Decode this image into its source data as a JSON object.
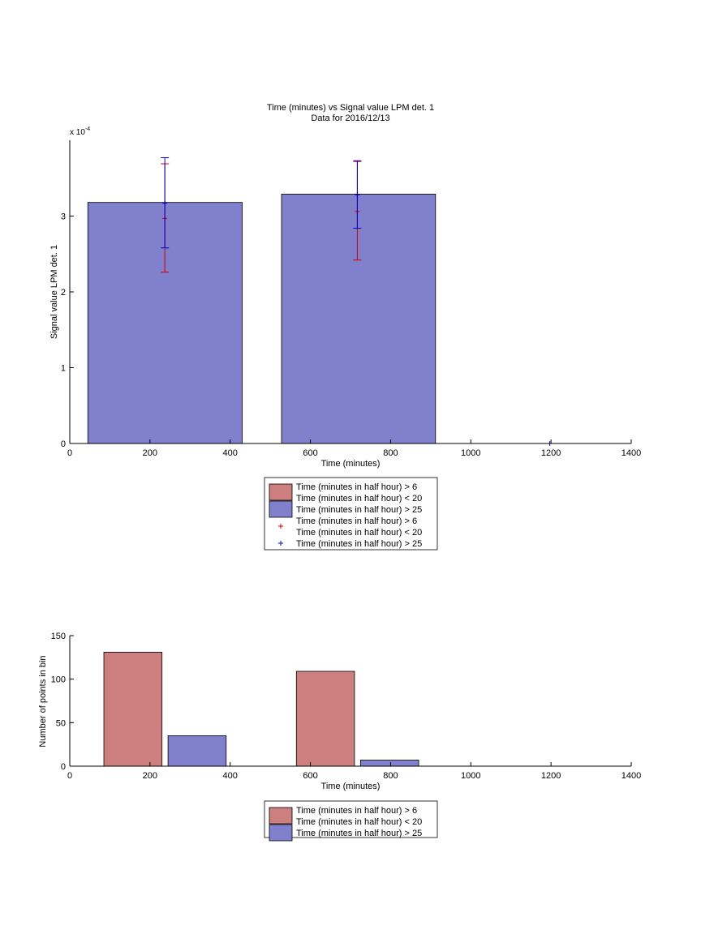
{
  "colors": {
    "red_bar": "#cd7f7f",
    "blue_bar": "#8080cd",
    "red_err": "#cc0000",
    "blue_err": "#0000cc"
  },
  "chart_data": [
    {
      "type": "bar",
      "title": "Time (minutes) vs Signal value LPM det. 1",
      "subtitle": "Data for 2016/12/13",
      "xlabel": "Time (minutes)",
      "ylabel": "Signal value LPM det. 1",
      "exponent_label": "x 10",
      "exponent_power": "-4",
      "xlim": [
        0,
        1400
      ],
      "ylim": [
        0,
        0.0004
      ],
      "xticks": [
        0,
        200,
        400,
        600,
        800,
        1000,
        1200,
        1400
      ],
      "yticks": [
        0,
        0.0001,
        0.0002,
        0.0003
      ],
      "ytick_labels": [
        "0",
        "1",
        "2",
        "3"
      ],
      "bars": [
        {
          "x0": 45,
          "x1": 430,
          "value": 0.000318,
          "series": 1
        },
        {
          "x0": 528,
          "x1": 912,
          "value": 0.000329,
          "series": 1
        }
      ],
      "errorbars": [
        {
          "x": 237,
          "center": 0.000297,
          "low": 0.000226,
          "high": 0.000369,
          "series": 0
        },
        {
          "x": 237,
          "center": 0.000317,
          "low": 0.000258,
          "high": 0.000377,
          "series": 1
        },
        {
          "x": 717,
          "center": 0.000306,
          "low": 0.000242,
          "high": 0.000372,
          "series": 0
        },
        {
          "x": 717,
          "center": 0.000328,
          "low": 0.000284,
          "high": 0.000373,
          "series": 1
        },
        {
          "x": 1197,
          "center": 0,
          "low": 0,
          "high": 0,
          "series": 1
        }
      ],
      "legend": {
        "placement": "below",
        "entries": [
          {
            "kind": "patch",
            "series": 0,
            "lines": [
              "Time (minutes in half hour) > 6",
              "Time (minutes in half hour) < 20"
            ]
          },
          {
            "kind": "patch",
            "series": 1,
            "lines": [
              "Time (minutes in half hour) > 25"
            ]
          },
          {
            "kind": "marker",
            "series": 0,
            "lines": [
              "Time (minutes in half hour) > 6",
              "Time (minutes in half hour) < 20"
            ]
          },
          {
            "kind": "marker",
            "series": 1,
            "lines": [
              "Time (minutes in half hour) > 25"
            ]
          }
        ]
      }
    },
    {
      "type": "bar",
      "title": "",
      "xlabel": "Time (minutes)",
      "ylabel": "Number of points in bin",
      "xlim": [
        0,
        1400
      ],
      "ylim": [
        0,
        150
      ],
      "xticks": [
        0,
        200,
        400,
        600,
        800,
        1000,
        1200,
        1400
      ],
      "yticks": [
        0,
        50,
        100,
        150
      ],
      "ytick_labels": [
        "0",
        "50",
        "100",
        "150"
      ],
      "bars": [
        {
          "x0": 85,
          "x1": 230,
          "value": 131,
          "series": 0
        },
        {
          "x0": 245,
          "x1": 390,
          "value": 35,
          "series": 1
        },
        {
          "x0": 565,
          "x1": 710,
          "value": 109,
          "series": 0
        },
        {
          "x0": 725,
          "x1": 870,
          "value": 7,
          "series": 1
        }
      ],
      "legend": {
        "placement": "below",
        "entries": [
          {
            "kind": "patch",
            "series": 0,
            "lines": [
              "Time (minutes in half hour) > 6",
              "Time (minutes in half hour) < 20"
            ]
          },
          {
            "kind": "patch",
            "series": 1,
            "lines": [
              "Time (minutes in half hour) > 25"
            ]
          }
        ]
      }
    }
  ]
}
